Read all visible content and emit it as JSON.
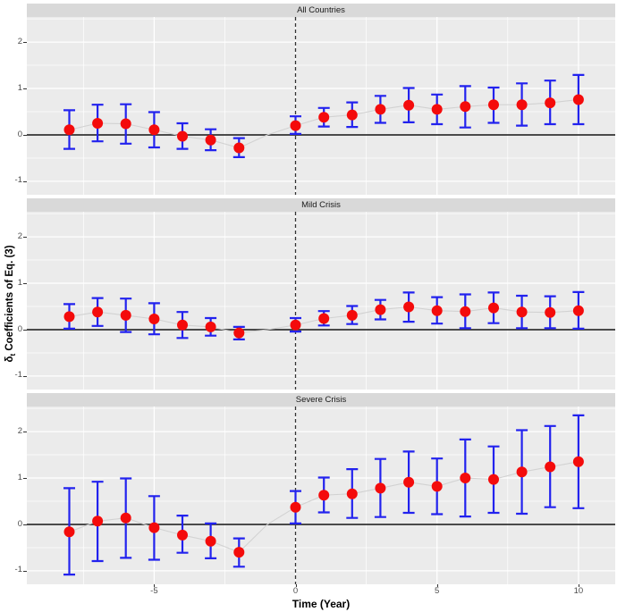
{
  "chart_data": {
    "type": "scatter",
    "description": "Event-study coefficient estimates with confidence intervals, three stacked facet panels sharing common axes",
    "xlabel": "Time (Year)",
    "ylabel": "δt Coefficients of Eq. (3)",
    "ylabel_parts": {
      "symbol": "δ",
      "subscript": "t",
      "rest": " Coefficients of Eq. (3)"
    },
    "x_ticks": [
      -5,
      0,
      5,
      10
    ],
    "y_ticks": [
      2,
      1,
      0,
      -1
    ],
    "x_minor_gridlines": [
      -7.5,
      -2.5,
      2.5,
      7.5
    ],
    "y_minor_gridlines": [
      -0.5,
      0.5,
      1.5,
      2.5
    ],
    "xlim": [
      -9.5,
      11.3
    ],
    "ylim": [
      -1.29,
      2.54
    ],
    "event_line_x": 0,
    "zero_line_y": 0,
    "reference_point": {
      "x": -1,
      "y": 0
    },
    "panels": [
      {
        "title": "All Countries",
        "points": [
          {
            "x": -8,
            "y": 0.11,
            "lo": -0.3,
            "hi": 0.53
          },
          {
            "x": -7,
            "y": 0.25,
            "lo": -0.14,
            "hi": 0.65
          },
          {
            "x": -6,
            "y": 0.24,
            "lo": -0.19,
            "hi": 0.66
          },
          {
            "x": -5,
            "y": 0.11,
            "lo": -0.27,
            "hi": 0.49
          },
          {
            "x": -4,
            "y": -0.03,
            "lo": -0.3,
            "hi": 0.25
          },
          {
            "x": -3,
            "y": -0.11,
            "lo": -0.33,
            "hi": 0.12
          },
          {
            "x": -2,
            "y": -0.28,
            "lo": -0.48,
            "hi": -0.07
          },
          {
            "x": 0,
            "y": 0.2,
            "lo": 0.02,
            "hi": 0.4
          },
          {
            "x": 1,
            "y": 0.38,
            "lo": 0.18,
            "hi": 0.58
          },
          {
            "x": 2,
            "y": 0.43,
            "lo": 0.17,
            "hi": 0.7
          },
          {
            "x": 3,
            "y": 0.55,
            "lo": 0.26,
            "hi": 0.84
          },
          {
            "x": 4,
            "y": 0.64,
            "lo": 0.27,
            "hi": 1.01
          },
          {
            "x": 5,
            "y": 0.55,
            "lo": 0.23,
            "hi": 0.87
          },
          {
            "x": 6,
            "y": 0.61,
            "lo": 0.16,
            "hi": 1.05
          },
          {
            "x": 7,
            "y": 0.65,
            "lo": 0.26,
            "hi": 1.02
          },
          {
            "x": 8,
            "y": 0.65,
            "lo": 0.2,
            "hi": 1.11
          },
          {
            "x": 9,
            "y": 0.69,
            "lo": 0.23,
            "hi": 1.17
          },
          {
            "x": 10,
            "y": 0.76,
            "lo": 0.23,
            "hi": 1.29
          }
        ]
      },
      {
        "title": "Mild Crisis",
        "points": [
          {
            "x": -8,
            "y": 0.28,
            "lo": 0.02,
            "hi": 0.55
          },
          {
            "x": -7,
            "y": 0.38,
            "lo": 0.08,
            "hi": 0.68
          },
          {
            "x": -6,
            "y": 0.31,
            "lo": -0.05,
            "hi": 0.67
          },
          {
            "x": -5,
            "y": 0.23,
            "lo": -0.1,
            "hi": 0.57
          },
          {
            "x": -4,
            "y": 0.1,
            "lo": -0.18,
            "hi": 0.38
          },
          {
            "x": -3,
            "y": 0.06,
            "lo": -0.13,
            "hi": 0.25
          },
          {
            "x": -2,
            "y": -0.07,
            "lo": -0.21,
            "hi": 0.06
          },
          {
            "x": 0,
            "y": 0.1,
            "lo": -0.04,
            "hi": 0.25
          },
          {
            "x": 1,
            "y": 0.24,
            "lo": 0.09,
            "hi": 0.4
          },
          {
            "x": 2,
            "y": 0.31,
            "lo": 0.12,
            "hi": 0.51
          },
          {
            "x": 3,
            "y": 0.43,
            "lo": 0.22,
            "hi": 0.64
          },
          {
            "x": 4,
            "y": 0.49,
            "lo": 0.17,
            "hi": 0.8
          },
          {
            "x": 5,
            "y": 0.41,
            "lo": 0.13,
            "hi": 0.7
          },
          {
            "x": 6,
            "y": 0.39,
            "lo": 0.03,
            "hi": 0.76
          },
          {
            "x": 7,
            "y": 0.47,
            "lo": 0.14,
            "hi": 0.8
          },
          {
            "x": 8,
            "y": 0.38,
            "lo": 0.03,
            "hi": 0.73
          },
          {
            "x": 9,
            "y": 0.37,
            "lo": 0.03,
            "hi": 0.72
          },
          {
            "x": 10,
            "y": 0.41,
            "lo": 0.02,
            "hi": 0.81
          }
        ]
      },
      {
        "title": "Severe Crisis",
        "points": [
          {
            "x": -8,
            "y": -0.16,
            "lo": -1.08,
            "hi": 0.78
          },
          {
            "x": -7,
            "y": 0.07,
            "lo": -0.79,
            "hi": 0.92
          },
          {
            "x": -6,
            "y": 0.14,
            "lo": -0.72,
            "hi": 0.99
          },
          {
            "x": -5,
            "y": -0.07,
            "lo": -0.76,
            "hi": 0.61
          },
          {
            "x": -4,
            "y": -0.23,
            "lo": -0.61,
            "hi": 0.19
          },
          {
            "x": -3,
            "y": -0.36,
            "lo": -0.73,
            "hi": 0.02
          },
          {
            "x": -2,
            "y": -0.6,
            "lo": -0.91,
            "hi": -0.3
          },
          {
            "x": 0,
            "y": 0.37,
            "lo": 0.02,
            "hi": 0.72
          },
          {
            "x": 1,
            "y": 0.63,
            "lo": 0.26,
            "hi": 1.01
          },
          {
            "x": 2,
            "y": 0.66,
            "lo": 0.14,
            "hi": 1.19
          },
          {
            "x": 3,
            "y": 0.78,
            "lo": 0.16,
            "hi": 1.41
          },
          {
            "x": 4,
            "y": 0.91,
            "lo": 0.25,
            "hi": 1.57
          },
          {
            "x": 5,
            "y": 0.82,
            "lo": 0.22,
            "hi": 1.42
          },
          {
            "x": 6,
            "y": 1.0,
            "lo": 0.17,
            "hi": 1.83
          },
          {
            "x": 7,
            "y": 0.97,
            "lo": 0.25,
            "hi": 1.68
          },
          {
            "x": 8,
            "y": 1.13,
            "lo": 0.23,
            "hi": 2.03
          },
          {
            "x": 9,
            "y": 1.24,
            "lo": 0.37,
            "hi": 2.12
          },
          {
            "x": 10,
            "y": 1.35,
            "lo": 0.35,
            "hi": 2.35
          }
        ]
      }
    ],
    "colors": {
      "point": "#F40B0B",
      "errorbar": "#2222EE",
      "trend_line": "#D2D2D2",
      "panel_background": "#EBEBEB",
      "strip_background": "#D9D9D9",
      "gridline": "#FFFFFF",
      "zero_line": "#333333",
      "event_line": "#333333",
      "tick_label": "#4D4D4D",
      "strip_text": "#1A1A1A",
      "axis_title": "#000000",
      "figure_background": "#FFFFFF"
    }
  }
}
